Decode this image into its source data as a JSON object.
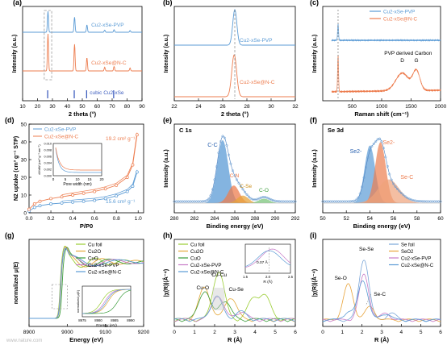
{
  "colors": {
    "pvp": "#5b9bd5",
    "nc": "#ed7d4f",
    "axis": "#000000",
    "cufoil": "#9acd32",
    "cu2o": "#e5a83a",
    "cuo": "#3a9c3a",
    "sefoil": "#7aa6d8",
    "seo2": "#e8a33a"
  },
  "watermark": "www.nature.com",
  "chart_data": [
    {
      "panel_label": "(a)",
      "type": "line",
      "xlabel": "2 theta (°)",
      "ylabel": "Intensity (a.u.)",
      "xlim": [
        10,
        90
      ],
      "xticks": [
        10,
        20,
        30,
        40,
        50,
        60,
        70,
        80,
        90
      ],
      "series": [
        {
          "name": "Cu2-xSe-PVP",
          "peaks": [
            [
              27.0,
              1.0
            ],
            [
              44.8,
              0.72
            ],
            [
              53.1,
              0.35
            ],
            [
              65.0,
              0.1
            ],
            [
              71.3,
              0.12
            ],
            [
              82.0,
              0.08
            ]
          ]
        },
        {
          "name": "Cu2-xSe@N-C",
          "peaks": [
            [
              27.0,
              1.0
            ],
            [
              44.8,
              0.72
            ],
            [
              53.1,
              0.35
            ],
            [
              65.0,
              0.1
            ],
            [
              71.3,
              0.12
            ],
            [
              82.0,
              0.08
            ]
          ]
        }
      ],
      "reference": {
        "name": "cubic Cu2-xSe",
        "sticks": [
          26.8,
          44.6,
          52.9,
          71.0
        ]
      },
      "annotations": {
        "pvp": "Cu2-xSe-PVP",
        "nc": "Cu2-xSe@N-C",
        "ref": "cubic Cu2-xSe"
      }
    },
    {
      "panel_label": "(b)",
      "type": "line",
      "xlabel": "2 theta (°)",
      "ylabel": "Intensity (a.u.)",
      "xlim": [
        22,
        32
      ],
      "xticks": [
        22,
        24,
        26,
        28,
        30,
        32
      ],
      "series": [
        {
          "name": "Cu2-xSe-PVP",
          "peak": 27.0
        },
        {
          "name": "Cu2-xSe@N-C",
          "peak": 26.95
        }
      ],
      "annotations": {
        "pvp": "Cu2-xSe-PVP",
        "nc": "Cu2-xSe@N-C"
      }
    },
    {
      "panel_label": "(c)",
      "type": "line",
      "xlabel": "Raman shift (cm⁻¹)",
      "ylabel": "Intensity (a.u.)",
      "xlim": [
        0,
        2000
      ],
      "xticks": [
        500,
        1000,
        1500,
        2000
      ],
      "series": [
        {
          "name": "Cu2-xSe-PVP",
          "peak": 260
        },
        {
          "name": "Cu2-xSe@N-C",
          "peak": 260,
          "bands": {
            "D": 1350,
            "G": 1590
          }
        }
      ],
      "legend": [
        "Cu2-xSe-PVP",
        "Cu2-xSe@N-C"
      ],
      "annotations": {
        "carbon": "PVP derived Carbon",
        "d": "D",
        "g": "G"
      }
    },
    {
      "panel_label": "(d)",
      "type": "line",
      "xlabel": "P/P0",
      "ylabel": "N2 uptake (cm³ g⁻¹ STP)",
      "xlim": [
        0,
        1.05
      ],
      "ylim": [
        0,
        50
      ],
      "xticks": [
        0.0,
        0.2,
        0.4,
        0.6,
        0.8,
        1.0
      ],
      "yticks": [
        0,
        10,
        20,
        30,
        40,
        50
      ],
      "series": [
        {
          "name": "Cu2-xSe-PVP",
          "x": [
            0.0,
            0.05,
            0.1,
            0.2,
            0.3,
            0.4,
            0.5,
            0.6,
            0.7,
            0.8,
            0.9,
            0.95,
            0.99
          ],
          "y": [
            1,
            3,
            4,
            5,
            5.5,
            6,
            6.5,
            7,
            8,
            9.5,
            12,
            15,
            23
          ]
        },
        {
          "name": "Cu2-xSe@N-C",
          "x": [
            0.0,
            0.05,
            0.1,
            0.2,
            0.3,
            0.4,
            0.5,
            0.6,
            0.7,
            0.8,
            0.9,
            0.95,
            0.99
          ],
          "y": [
            2,
            5,
            6.5,
            8,
            9,
            10,
            11,
            12,
            13.5,
            15.5,
            20,
            27,
            44
          ]
        }
      ],
      "annotations": {
        "bet_nc": "19.2 cm² g⁻¹",
        "bet_pvp": "15.6 cm² g⁻¹"
      },
      "inset": {
        "xlabel": "Pore width (nm)",
        "ylabel": "dV/dW (cm³ g⁻¹ nm⁻¹)",
        "xticks": [
          0,
          5,
          10,
          15,
          20
        ],
        "yticks": [
          "0.000",
          "0.002",
          "0.004",
          "0.006",
          "0.008",
          "0.010"
        ]
      }
    },
    {
      "panel_label": "(e)",
      "type": "line",
      "title": "C 1s",
      "xlabel": "Binding energy (eV)",
      "ylabel": "Intensity (a.u.)",
      "xlim": [
        280,
        292
      ],
      "xticks": [
        280,
        282,
        284,
        286,
        288,
        290,
        292
      ],
      "series": [
        {
          "name": "C-C",
          "center": 284.8,
          "height": 1.0
        },
        {
          "name": "C-N",
          "center": 285.9,
          "height": 0.28
        },
        {
          "name": "C-Se",
          "center": 286.8,
          "height": 0.12
        },
        {
          "name": "C-O",
          "center": 288.9,
          "height": 0.07
        }
      ]
    },
    {
      "panel_label": "(f)",
      "type": "line",
      "title": "Se 3d",
      "xlabel": "Binding energy (eV)",
      "ylabel": "Intensity (a.u.)",
      "xlim": [
        50,
        60
      ],
      "xticks": [
        50,
        52,
        54,
        56,
        58,
        60
      ],
      "series": [
        {
          "name": "Se2- (3d5/2)",
          "center": 54.0,
          "height": 0.85
        },
        {
          "name": "Se2- (3d3/2)",
          "center": 54.9,
          "height": 0.9
        },
        {
          "name": "Se-C",
          "center": 55.6,
          "height": 0.35
        }
      ],
      "annotations": {
        "se1": "Se2-",
        "se2": "Se2-",
        "sec": "Se-C"
      }
    },
    {
      "panel_label": "(g)",
      "type": "line",
      "xlabel": "Energy (eV)",
      "ylabel": "normalized μ(E)",
      "xlim": [
        8900,
        9200
      ],
      "xticks": [
        8900,
        9000,
        9100,
        9200
      ],
      "series": [
        "Cu foil",
        "Cu2O",
        "CuO",
        "Cu2-xSe-PVP",
        "Cu2-xSe@N-C"
      ],
      "inset": {
        "xlabel": "Energy (eV)",
        "ylabel": "normalized μ(E)",
        "xticks": [
          8975,
          8980,
          8985,
          8990
        ]
      }
    },
    {
      "panel_label": "(h)",
      "type": "line",
      "xlabel": "R (Å)",
      "ylabel": "|χ(R)|(Å⁻⁴)",
      "xlim": [
        0,
        6
      ],
      "xticks": [
        0,
        1,
        2,
        3,
        4,
        5,
        6
      ],
      "series": [
        "Cu foil",
        "Cu2O",
        "CuO",
        "Cu2-xSe-PVP",
        "Cu2-xSe@N-C"
      ],
      "annotations": {
        "cucu": "Cu-Cu",
        "cuo": "Cu-O",
        "cuse": "Cu-Se",
        "shift": "0.07 Å"
      },
      "inset": {
        "xlabel": "R (Å)",
        "xticks": [
          1.5,
          2.0,
          2.5
        ]
      }
    },
    {
      "panel_label": "(i)",
      "type": "line",
      "xlabel": "R (Å)",
      "ylabel": "|χ(R)|(Å⁻⁴)",
      "xlim": [
        0,
        6
      ],
      "xticks": [
        0,
        1,
        2,
        3,
        4,
        5,
        6
      ],
      "series": [
        "Se foil",
        "SeO2",
        "Cu2-xSe-PVP",
        "Cu2-xSe@N-C"
      ],
      "annotations": {
        "sese": "Se-Se",
        "seo": "Se-O",
        "sec": "Se-C"
      }
    }
  ]
}
